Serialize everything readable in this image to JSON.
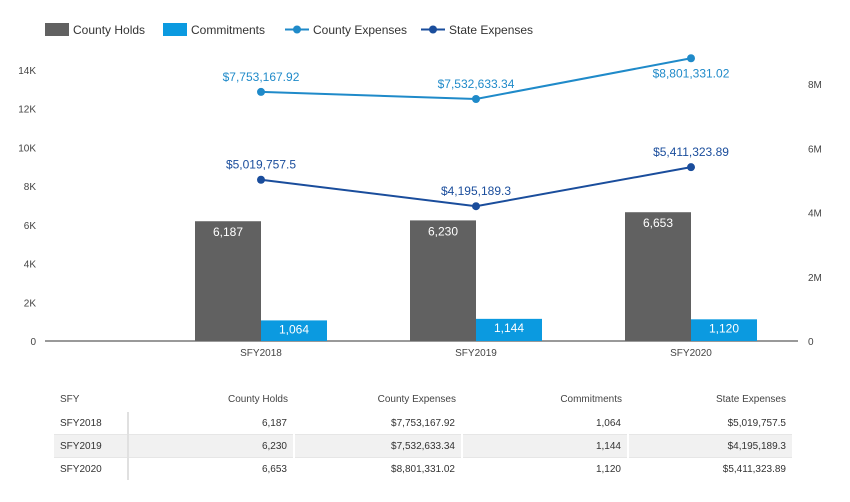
{
  "chart_data": {
    "type": "bar",
    "categories": [
      "SFY2018",
      "SFY2019",
      "SFY2020"
    ],
    "bar_series": [
      {
        "name": "County Holds",
        "values": [
          6187,
          6230,
          6653
        ],
        "labels": [
          "6,187",
          "6,230",
          "6,653"
        ],
        "color": "#616161"
      },
      {
        "name": "Commitments",
        "values": [
          1064,
          1144,
          1120
        ],
        "labels": [
          "1,064",
          "1,144",
          "1,120"
        ],
        "color": "#0b9ae0"
      }
    ],
    "line_series": [
      {
        "name": "County Expenses",
        "values": [
          7753167.92,
          7532633.34,
          8801331.02
        ],
        "labels": [
          "$7,753,167.92",
          "$7,532,633.34",
          "$8,801,331.02"
        ],
        "color": "#1f8ac9"
      },
      {
        "name": "State Expenses",
        "values": [
          5019757.5,
          4195189.3,
          5411323.89
        ],
        "labels": [
          "$5,019,757.5",
          "$4,195,189.3",
          "$5,411,323.89"
        ],
        "color": "#1a4d9c"
      }
    ],
    "ylim_left": [
      0,
      14000
    ],
    "yticks_left": [
      "0",
      "2K",
      "4K",
      "6K",
      "8K",
      "10K",
      "12K",
      "14K"
    ],
    "ylim_right": [
      0,
      8500000
    ],
    "yticks_right": [
      "0",
      "2M",
      "4M",
      "6M",
      "8M"
    ],
    "legend_position": "top-left",
    "grid": false
  },
  "table": {
    "headers": [
      "SFY",
      "County Holds",
      "County Expenses",
      "Commitments",
      "State Expenses"
    ],
    "rows": [
      [
        "SFY2018",
        "6,187",
        "$7,753,167.92",
        "1,064",
        "$5,019,757.5"
      ],
      [
        "SFY2019",
        "6,230",
        "$7,532,633.34",
        "1,144",
        "$4,195,189.3"
      ],
      [
        "SFY2020",
        "6,653",
        "$8,801,331.02",
        "1,120",
        "$5,411,323.89"
      ]
    ]
  }
}
